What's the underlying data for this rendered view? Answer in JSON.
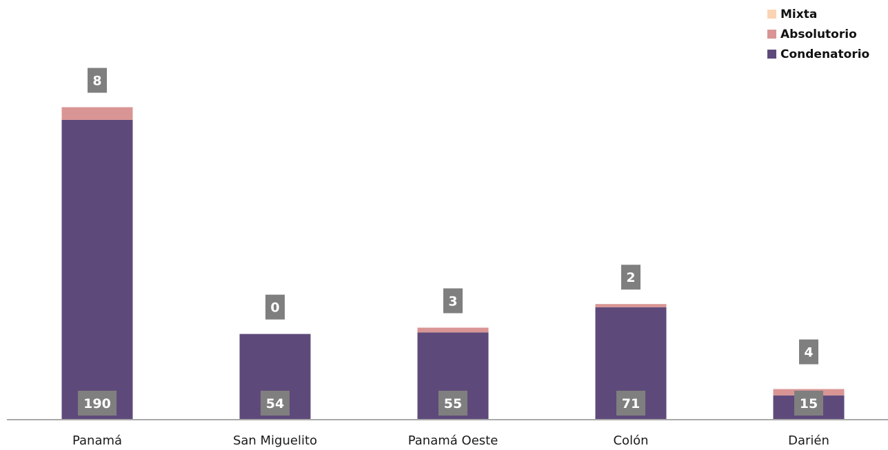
{
  "chart_data": {
    "type": "bar",
    "stacked": true,
    "categories": [
      "Panamá",
      "San Miguelito",
      "Panamá Oeste",
      "Colón",
      "Darién"
    ],
    "series": [
      {
        "name": "Condenatorio",
        "color": "#5e4a7a",
        "values": [
          190,
          54,
          55,
          71,
          15
        ],
        "labels": [
          "190",
          "54",
          "55",
          "71",
          "15"
        ]
      },
      {
        "name": "Absolutorio",
        "color": "#d99594",
        "values": [
          8,
          0,
          3,
          2,
          4
        ],
        "labels": [
          "8",
          "0",
          "3",
          "2",
          "4"
        ]
      },
      {
        "name": "Mixta",
        "color": "#fbd4b4",
        "values": [
          0,
          0,
          0,
          0,
          0
        ]
      }
    ],
    "legend_order": [
      "Mixta",
      "Absolutorio",
      "Condenatorio"
    ],
    "legend_position": "top-right",
    "title": "",
    "xlabel": "",
    "ylabel": "",
    "ylim": [
      0,
      207
    ],
    "grid": false,
    "label_box_color": "#7f7f7f"
  }
}
